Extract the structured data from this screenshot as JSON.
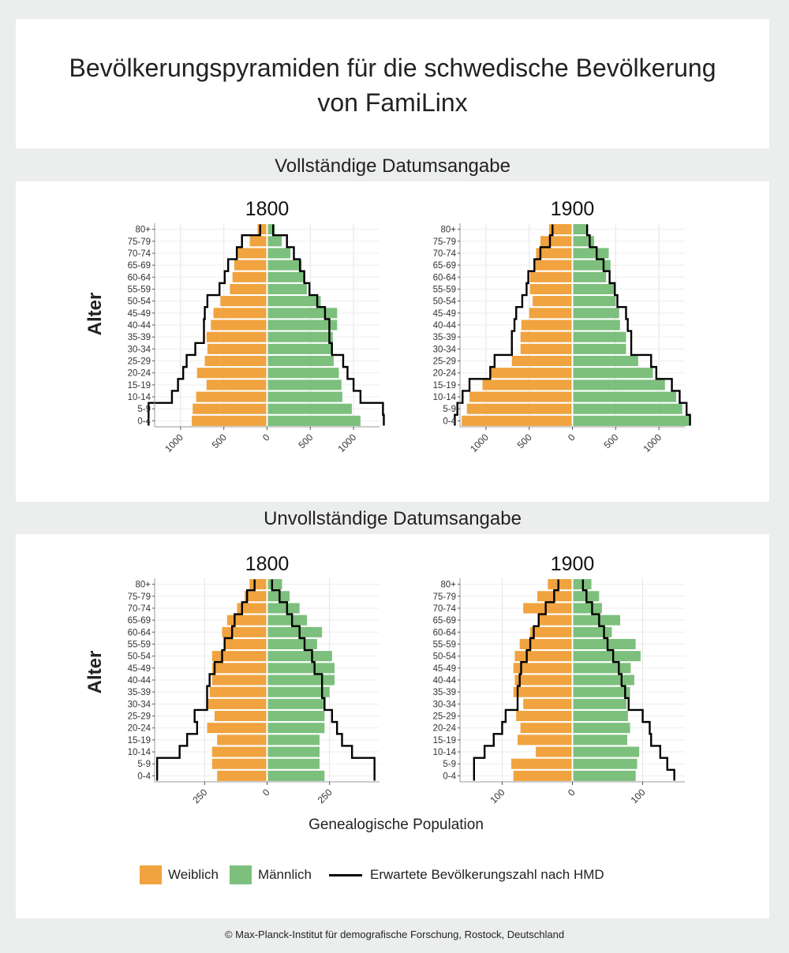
{
  "title_line1": "Bevölkerungspyramiden für die schwedische Bevölkerung",
  "title_line2": "von FamiLinx",
  "section_complete": "Vollständige Datumsangabe",
  "section_incomplete": "Unvollständige Datumsangabe",
  "x_axis_label": "Genealogische Population",
  "y_axis_label": "Alter",
  "legend": {
    "female": "Weiblich",
    "male": "Männlich",
    "line": "Erwartete Bevölkerungszahl nach HMD"
  },
  "colors": {
    "female": "#f0a33f",
    "male": "#7dbf7d",
    "line": "#000000"
  },
  "footer": "© Max-Planck-Institut für demografische Forschung, Rostock, Deutschland",
  "chart_data": [
    {
      "type": "bar",
      "section": "Vollständige Datumsangabe",
      "title": "1800",
      "categories": [
        "0-4",
        "5-9",
        "10-14",
        "15-19",
        "20-24",
        "25-29",
        "30-34",
        "35-39",
        "40-44",
        "45-49",
        "50-54",
        "55-59",
        "60-64",
        "65-69",
        "70-74",
        "75-79",
        "80+"
      ],
      "xlim": [
        -1300,
        1300
      ],
      "xticks": [
        -1000,
        -500,
        0,
        500,
        1000
      ],
      "xticklabels": [
        "1000",
        "500",
        "0",
        "500",
        "1000"
      ],
      "series": [
        {
          "name": "Weiblich",
          "values": [
            870,
            860,
            820,
            700,
            810,
            720,
            690,
            700,
            650,
            620,
            540,
            430,
            400,
            380,
            340,
            200,
            110
          ]
        },
        {
          "name": "Männlich",
          "values": [
            1080,
            980,
            870,
            860,
            830,
            770,
            740,
            760,
            810,
            810,
            620,
            460,
            440,
            400,
            270,
            170,
            90
          ]
        },
        {
          "name": "Erwartete Bevölkerungszahl nach HMD",
          "female": [
            1370,
            1370,
            1100,
            1030,
            970,
            930,
            830,
            730,
            730,
            720,
            690,
            550,
            490,
            450,
            350,
            290,
            80
          ],
          "male": [
            1350,
            1340,
            1080,
            1000,
            930,
            880,
            750,
            720,
            720,
            670,
            580,
            490,
            430,
            380,
            310,
            230,
            70
          ]
        }
      ]
    },
    {
      "type": "bar",
      "section": "Vollständige Datumsangabe",
      "title": "1900",
      "categories": [
        "0-4",
        "5-9",
        "10-14",
        "15-19",
        "20-24",
        "25-29",
        "30-34",
        "35-39",
        "40-44",
        "45-49",
        "50-54",
        "55-59",
        "60-64",
        "65-69",
        "70-74",
        "75-79",
        "80+"
      ],
      "xlim": [
        -1300,
        1300
      ],
      "xticks": [
        -1000,
        -500,
        0,
        500,
        1000
      ],
      "xticklabels": [
        "1000",
        "500",
        "0",
        "500",
        "1000"
      ],
      "series": [
        {
          "name": "Weiblich",
          "values": [
            1280,
            1220,
            1190,
            1040,
            940,
            700,
            600,
            600,
            590,
            500,
            460,
            490,
            490,
            440,
            420,
            370,
            270
          ]
        },
        {
          "name": "Männlich",
          "values": [
            1350,
            1270,
            1200,
            1070,
            930,
            760,
            620,
            620,
            550,
            540,
            500,
            490,
            390,
            440,
            420,
            250,
            180
          ]
        },
        {
          "name": "Erwartete Bevölkerungszahl nach HMD",
          "female": [
            1360,
            1330,
            1270,
            1190,
            950,
            900,
            700,
            700,
            670,
            650,
            580,
            530,
            510,
            440,
            370,
            260,
            230
          ],
          "male": [
            1360,
            1320,
            1240,
            1150,
            970,
            910,
            680,
            680,
            640,
            620,
            520,
            490,
            430,
            360,
            280,
            200,
            170
          ]
        }
      ]
    },
    {
      "type": "bar",
      "section": "Unvollständige Datumsangabe",
      "title": "1800",
      "categories": [
        "0-4",
        "5-9",
        "10-14",
        "15-19",
        "20-24",
        "25-29",
        "30-34",
        "35-39",
        "40-44",
        "45-49",
        "50-54",
        "55-59",
        "60-64",
        "65-69",
        "70-74",
        "75-79",
        "80+"
      ],
      "xlim": [
        -450,
        450
      ],
      "xticks": [
        -250,
        0,
        250
      ],
      "xticklabels": [
        "250",
        "0",
        "250"
      ],
      "series": [
        {
          "name": "Weiblich",
          "values": [
            200,
            220,
            220,
            200,
            240,
            210,
            240,
            230,
            220,
            220,
            220,
            170,
            180,
            160,
            120,
            90,
            70
          ]
        },
        {
          "name": "Männlich",
          "values": [
            230,
            210,
            210,
            210,
            230,
            230,
            230,
            250,
            270,
            270,
            260,
            200,
            220,
            160,
            130,
            90,
            60
          ]
        },
        {
          "name": "Erwartete Bevölkerungszahl nach HMD",
          "female": [
            440,
            440,
            350,
            320,
            280,
            290,
            240,
            240,
            230,
            210,
            180,
            170,
            140,
            130,
            100,
            80,
            50
          ],
          "male": [
            430,
            430,
            340,
            300,
            280,
            260,
            230,
            220,
            220,
            190,
            180,
            150,
            130,
            100,
            80,
            50,
            20
          ]
        }
      ]
    },
    {
      "type": "bar",
      "section": "Unvollständige Datumsangabe",
      "title": "1900",
      "categories": [
        "0-4",
        "5-9",
        "10-14",
        "15-19",
        "20-24",
        "25-29",
        "30-34",
        "35-39",
        "40-44",
        "45-49",
        "50-54",
        "55-59",
        "60-64",
        "65-69",
        "70-74",
        "75-79",
        "80+"
      ],
      "xlim": [
        -160,
        160
      ],
      "xticks": [
        -100,
        0,
        100
      ],
      "xticklabels": [
        "100",
        "0",
        "100"
      ],
      "series": [
        {
          "name": "Weiblich",
          "values": [
            84,
            87,
            52,
            78,
            74,
            80,
            70,
            84,
            82,
            84,
            82,
            75,
            60,
            48,
            70,
            50,
            35
          ]
        },
        {
          "name": "Männlich",
          "values": [
            90,
            92,
            95,
            78,
            82,
            79,
            77,
            82,
            88,
            83,
            97,
            90,
            56,
            68,
            42,
            38,
            27
          ]
        },
        {
          "name": "Erwartete Bevölkerungszahl nach HMD",
          "female": [
            140,
            140,
            125,
            112,
            100,
            95,
            78,
            78,
            75,
            73,
            65,
            60,
            55,
            48,
            38,
            26,
            20
          ],
          "male": [
            145,
            135,
            125,
            112,
            110,
            100,
            80,
            75,
            70,
            66,
            58,
            50,
            45,
            38,
            28,
            20,
            15
          ]
        }
      ]
    }
  ]
}
